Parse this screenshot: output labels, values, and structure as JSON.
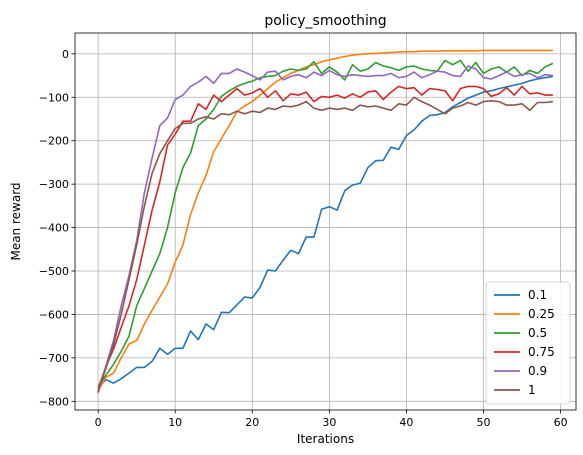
{
  "chart_data": {
    "type": "line",
    "title": "policy_smoothing",
    "xlabel": "Iterations",
    "ylabel": "Mean reward",
    "xlim": [
      -3,
      62
    ],
    "ylim": [
      -820,
      48
    ],
    "xticks": [
      0,
      10,
      20,
      30,
      40,
      50,
      60
    ],
    "yticks": [
      -800,
      -700,
      -600,
      -500,
      -400,
      -300,
      -200,
      -100,
      0
    ],
    "grid": true,
    "legend_position": "bottom-right",
    "colors": [
      "#1f77b4",
      "#ff7f0e",
      "#2ca02c",
      "#d62728",
      "#9467bd",
      "#8c564b"
    ],
    "x": [
      0,
      1,
      2,
      3,
      4,
      5,
      6,
      7,
      8,
      9,
      10,
      11,
      12,
      13,
      14,
      15,
      16,
      17,
      18,
      19,
      20,
      21,
      22,
      23,
      24,
      25,
      26,
      27,
      28,
      29,
      30,
      31,
      32,
      33,
      34,
      35,
      36,
      37,
      38,
      39,
      40,
      41,
      42,
      43,
      44,
      45,
      46,
      47,
      48,
      49,
      50,
      51,
      52,
      53,
      54,
      55,
      56,
      57,
      58,
      59
    ],
    "series": [
      {
        "name": "0.1",
        "values": [
          -770,
          -750,
          -758,
          -748,
          -735,
          -722,
          -722,
          -708,
          -678,
          -692,
          -678,
          -678,
          -638,
          -658,
          -622,
          -635,
          -595,
          -596,
          -578,
          -560,
          -562,
          -538,
          -498,
          -500,
          -475,
          -452,
          -460,
          -422,
          -422,
          -358,
          -352,
          -360,
          -315,
          -302,
          -298,
          -262,
          -246,
          -245,
          -215,
          -220,
          -188,
          -175,
          -155,
          -142,
          -140,
          -135,
          -122,
          -112,
          -102,
          -95,
          -88,
          -85,
          -80,
          -76,
          -72,
          -68,
          -62,
          -58,
          -55,
          -52
        ]
      },
      {
        "name": "0.25",
        "values": [
          -775,
          -745,
          -735,
          -700,
          -668,
          -660,
          -622,
          -590,
          -560,
          -530,
          -480,
          -440,
          -370,
          -320,
          -280,
          -225,
          -195,
          -165,
          -133,
          -120,
          -110,
          -95,
          -80,
          -65,
          -55,
          -45,
          -38,
          -30,
          -25,
          -18,
          -14,
          -10,
          -6,
          -3,
          -1,
          0,
          1,
          2,
          3,
          4,
          5,
          5,
          6,
          6,
          6,
          7,
          7,
          7,
          7,
          7,
          8,
          8,
          8,
          8,
          8,
          8,
          8,
          8,
          8,
          8
        ]
      },
      {
        "name": "0.5",
        "values": [
          -765,
          -740,
          -715,
          -685,
          -650,
          -580,
          -540,
          -500,
          -460,
          -400,
          -320,
          -262,
          -228,
          -165,
          -150,
          -128,
          -98,
          -85,
          -75,
          -68,
          -63,
          -55,
          -52,
          -50,
          -40,
          -35,
          -38,
          -35,
          -18,
          -45,
          -30,
          -42,
          -60,
          -25,
          -40,
          -35,
          -20,
          -28,
          -32,
          -38,
          -30,
          -28,
          -35,
          -38,
          -40,
          -15,
          -25,
          -15,
          -40,
          -20,
          -45,
          -35,
          -30,
          -42,
          -30,
          -50,
          -38,
          -45,
          -30,
          -22
        ]
      },
      {
        "name": "0.75",
        "values": [
          -780,
          -720,
          -680,
          -630,
          -580,
          -520,
          -440,
          -360,
          -295,
          -210,
          -185,
          -155,
          -155,
          -115,
          -128,
          -95,
          -110,
          -95,
          -80,
          -95,
          -90,
          -80,
          -100,
          -85,
          -108,
          -92,
          -95,
          -88,
          -110,
          -98,
          -100,
          -95,
          -102,
          -92,
          -100,
          -88,
          -85,
          -105,
          -88,
          -75,
          -80,
          -78,
          -95,
          -80,
          -82,
          -85,
          -108,
          -80,
          -75,
          -75,
          -80,
          -98,
          -92,
          -78,
          -95,
          -75,
          -92,
          -90,
          -95,
          -95
        ]
      },
      {
        "name": "0.9",
        "values": [
          -770,
          -720,
          -660,
          -580,
          -510,
          -430,
          -320,
          -240,
          -165,
          -148,
          -105,
          -95,
          -75,
          -65,
          -52,
          -68,
          -45,
          -45,
          -35,
          -42,
          -50,
          -60,
          -42,
          -40,
          -60,
          -52,
          -48,
          -55,
          -42,
          -50,
          -38,
          -48,
          -52,
          -48,
          -50,
          -52,
          -50,
          -50,
          -45,
          -55,
          -52,
          -42,
          -55,
          -48,
          -40,
          -42,
          -50,
          -52,
          -28,
          -35,
          -55,
          -58,
          -50,
          -42,
          -52,
          -48,
          -45,
          -55,
          -48,
          -50
        ]
      },
      {
        "name": "1",
        "values": [
          -775,
          -725,
          -670,
          -600,
          -520,
          -440,
          -350,
          -275,
          -230,
          -200,
          -172,
          -160,
          -160,
          -150,
          -145,
          -150,
          -138,
          -140,
          -132,
          -138,
          -132,
          -135,
          -125,
          -128,
          -120,
          -122,
          -118,
          -110,
          -125,
          -130,
          -125,
          -128,
          -125,
          -130,
          -118,
          -122,
          -120,
          -125,
          -130,
          -115,
          -118,
          -100,
          -110,
          -118,
          -128,
          -138,
          -125,
          -120,
          -112,
          -118,
          -110,
          -108,
          -110,
          -118,
          -118,
          -115,
          -130,
          -112,
          -112,
          -110
        ]
      }
    ]
  }
}
